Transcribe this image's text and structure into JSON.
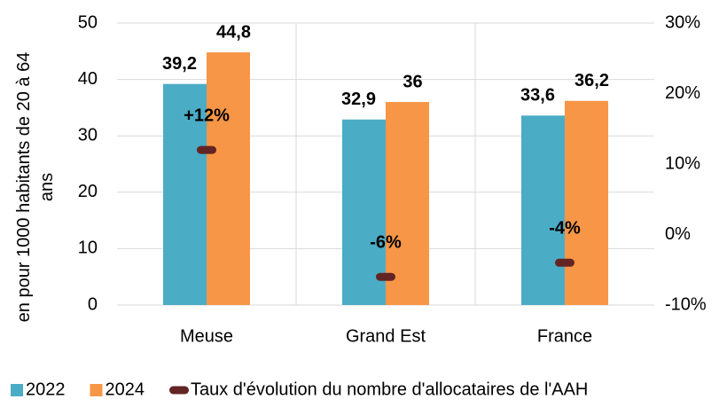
{
  "chart_data": {
    "type": "bar",
    "y_label": "en pour 1000 habitants de 20 à 64 ans",
    "categories": [
      "Meuse",
      "Grand Est",
      "France"
    ],
    "series": [
      {
        "name": "2022",
        "color": "#4bacc6",
        "label_color": "#31859c",
        "values": [
          39.2,
          32.9,
          33.6
        ],
        "value_labels": [
          "39,2",
          "32,9",
          "33,6"
        ]
      },
      {
        "name": "2024",
        "color": "#f79646",
        "label_color": "#e36c09",
        "values": [
          44.8,
          36,
          36.2
        ],
        "value_labels": [
          "44,8",
          "36",
          "36,2"
        ]
      },
      {
        "name": "Taux d'évolution du nombre d'allocataires de l'AAH",
        "color": "#632523",
        "axis": "y2",
        "values": [
          12,
          -6,
          -4
        ],
        "value_labels": [
          "+12%",
          "-6%",
          "-4%"
        ]
      }
    ],
    "ylim": [
      0,
      50
    ],
    "yticks": [
      0,
      10,
      20,
      30,
      40,
      50
    ],
    "y2lim": [
      -10,
      30
    ],
    "y2ticks": [
      {
        "value": -10,
        "label": "-10%"
      },
      {
        "value": 0,
        "label": "0%"
      },
      {
        "value": 10,
        "label": "10%"
      },
      {
        "value": 20,
        "label": "20%"
      },
      {
        "value": 30,
        "label": "30%"
      }
    ],
    "grid": true
  }
}
